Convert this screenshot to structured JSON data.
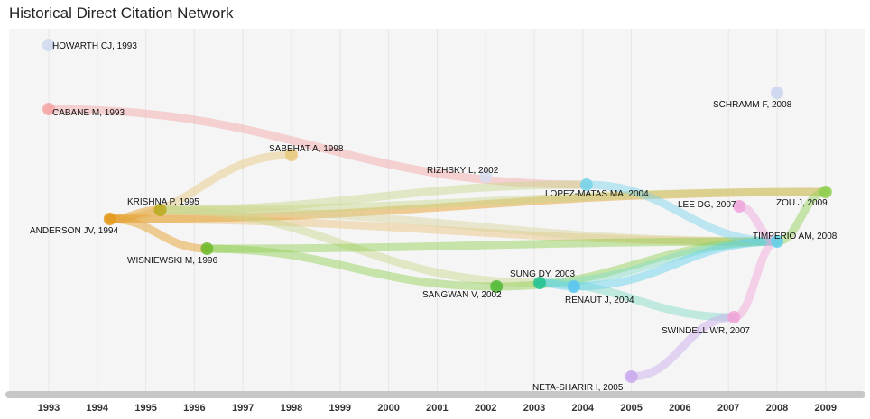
{
  "title": "Historical Direct Citation Network",
  "years": [
    "1993",
    "1994",
    "1995",
    "1996",
    "1997",
    "1998",
    "1999",
    "2000",
    "2001",
    "2002",
    "2003",
    "2004",
    "2005",
    "2006",
    "2007",
    "2008",
    "2009"
  ],
  "nodes": [
    {
      "id": "howarth",
      "label": "HOWARTH CJ, 1993",
      "year": 1993,
      "color": "#cfd8ef"
    },
    {
      "id": "cabane",
      "label": "CABANE M, 1993",
      "year": 1993,
      "color": "#f4a5a5"
    },
    {
      "id": "sabehat",
      "label": "SABEHAT A, 1998",
      "year": 1998,
      "color": "#e6c77a"
    },
    {
      "id": "rizhsky",
      "label": "RIZHSKY L, 2002",
      "year": 2002,
      "color": "#d6dcef"
    },
    {
      "id": "schramm",
      "label": "SCHRAMM F, 2008",
      "year": 2008,
      "color": "#c9d4f0"
    },
    {
      "id": "krishna",
      "label": "KRISHNA P, 1995",
      "year": 1995,
      "color": "#b9a81a"
    },
    {
      "id": "anderson",
      "label": "ANDERSON JV, 1994",
      "year": 1994,
      "color": "#e49a1d"
    },
    {
      "id": "lopez",
      "label": "LOPEZ-MATAS MA, 2004",
      "year": 2004,
      "color": "#76d2ea"
    },
    {
      "id": "leedg",
      "label": "LEE DG, 2007",
      "year": 2007,
      "color": "#f0a5dc"
    },
    {
      "id": "zouj",
      "label": "ZOU J, 2009",
      "year": 2009,
      "color": "#8dcf4d"
    },
    {
      "id": "timperio",
      "label": "TIMPERIO AM, 2008",
      "year": 2008,
      "color": "#5fd0ee"
    },
    {
      "id": "wisniewski",
      "label": "WISNIEWSKI M, 1996",
      "year": 1996,
      "color": "#6fb82c"
    },
    {
      "id": "sungdy",
      "label": "SUNG DY, 2003",
      "year": 2003,
      "color": "#21c28e"
    },
    {
      "id": "sangwan",
      "label": "SANGWAN V, 2002",
      "year": 2002,
      "color": "#4fb836"
    },
    {
      "id": "renaut",
      "label": "RENAUT J, 2004",
      "year": 2004,
      "color": "#5ac4f0"
    },
    {
      "id": "swindell",
      "label": "SWINDELL WR, 2007",
      "year": 2007,
      "color": "#f2a5d8"
    },
    {
      "id": "neta",
      "label": "NETA-SHARIR I, 2005",
      "year": 2005,
      "color": "#c9a8ef"
    }
  ],
  "edges": [
    {
      "from": "cabane",
      "to": "lopez",
      "color": "#f4a5a5"
    },
    {
      "from": "anderson",
      "to": "sabehat",
      "color": "#e6c77a"
    },
    {
      "from": "anderson",
      "to": "krishna",
      "color": "#e49a1d"
    },
    {
      "from": "anderson",
      "to": "wisniewski",
      "color": "#e49a1d"
    },
    {
      "from": "anderson",
      "to": "timperio",
      "color": "#e8c27a"
    },
    {
      "from": "anderson",
      "to": "zouj",
      "color": "#e49a1d"
    },
    {
      "from": "krishna",
      "to": "lopez",
      "color": "#c7d68a"
    },
    {
      "from": "krishna",
      "to": "timperio",
      "color": "#d8d39a"
    },
    {
      "from": "krishna",
      "to": "zouj",
      "color": "#c7d68a"
    },
    {
      "from": "krishna",
      "to": "sungdy",
      "color": "#c7d68a"
    },
    {
      "from": "wisniewski",
      "to": "sangwan",
      "color": "#8dcf4d"
    },
    {
      "from": "wisniewski",
      "to": "timperio",
      "color": "#8dcf4d"
    },
    {
      "from": "sangwan",
      "to": "timperio",
      "color": "#8dcf4d"
    },
    {
      "from": "sungdy",
      "to": "timperio",
      "color": "#7fdcc6"
    },
    {
      "from": "sungdy",
      "to": "swindell",
      "color": "#7fdcc6"
    },
    {
      "from": "sungdy",
      "to": "renaut",
      "color": "#5fd0ee"
    },
    {
      "from": "lopez",
      "to": "timperio",
      "color": "#76d2ea"
    },
    {
      "from": "renaut",
      "to": "timperio",
      "color": "#5fd0ee"
    },
    {
      "from": "timperio",
      "to": "leedg",
      "color": "#f0a5dc"
    },
    {
      "from": "swindell",
      "to": "timperio",
      "color": "#f2a5d8"
    },
    {
      "from": "neta",
      "to": "swindell",
      "color": "#c9a8ef"
    },
    {
      "from": "timperio",
      "to": "zouj",
      "color": "#8dcf4d"
    }
  ]
}
